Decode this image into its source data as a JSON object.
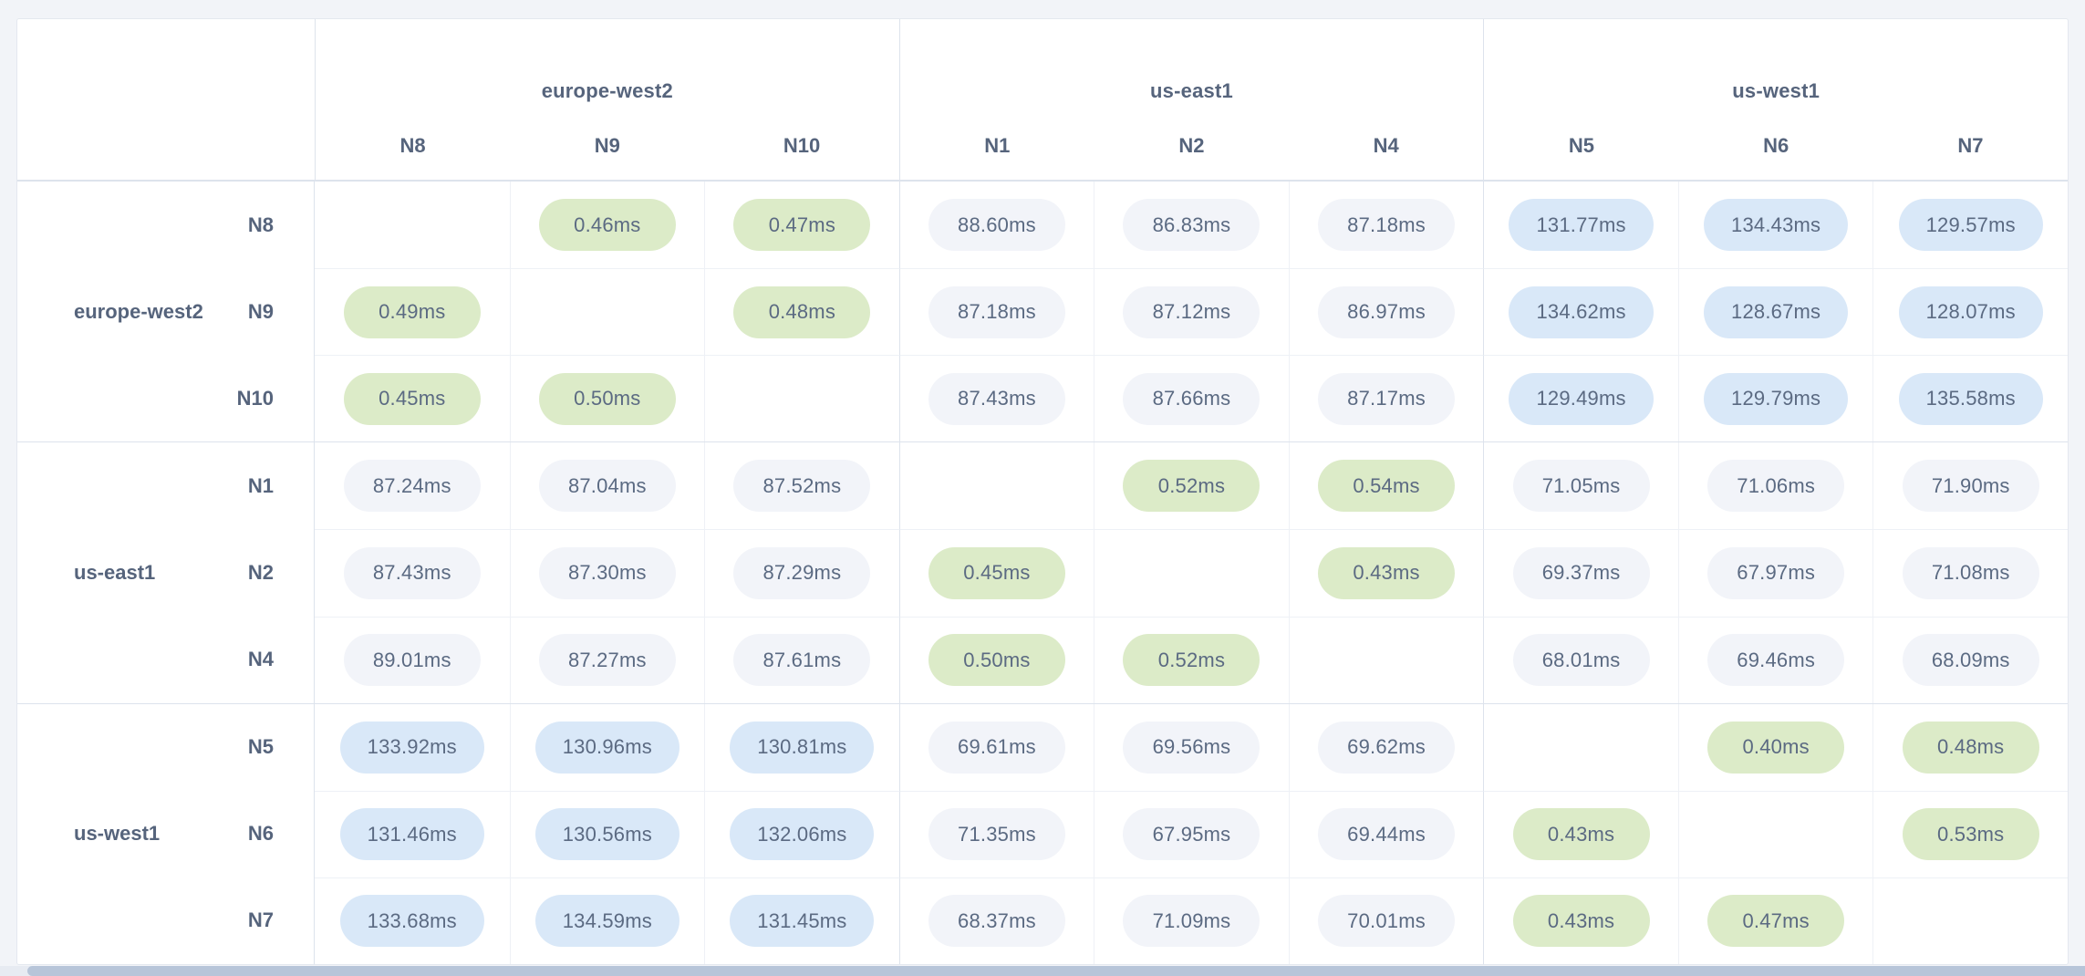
{
  "accent_colors": {
    "intra_region_green": "#dcebc8",
    "mid_latency_gray": "#f2f4f9",
    "high_latency_blue": "#d9e8f8",
    "text_slate": "#56647c"
  },
  "table": {
    "unit": "ms",
    "column_groups": [
      {
        "region": "europe-west2",
        "nodes": [
          "N8",
          "N9",
          "N10"
        ]
      },
      {
        "region": "us-east1",
        "nodes": [
          "N1",
          "N2",
          "N4"
        ]
      },
      {
        "region": "us-west1",
        "nodes": [
          "N5",
          "N6",
          "N7"
        ]
      }
    ],
    "row_groups": [
      {
        "region": "europe-west2",
        "rows": [
          {
            "node": "N8",
            "values": [
              null,
              "0.46ms",
              "0.47ms",
              "88.60ms",
              "86.83ms",
              "87.18ms",
              "131.77ms",
              "134.43ms",
              "129.57ms"
            ]
          },
          {
            "node": "N9",
            "values": [
              "0.49ms",
              null,
              "0.48ms",
              "87.18ms",
              "87.12ms",
              "86.97ms",
              "134.62ms",
              "128.67ms",
              "128.07ms"
            ]
          },
          {
            "node": "N10",
            "values": [
              "0.45ms",
              "0.50ms",
              null,
              "87.43ms",
              "87.66ms",
              "87.17ms",
              "129.49ms",
              "129.79ms",
              "135.58ms"
            ]
          }
        ]
      },
      {
        "region": "us-east1",
        "rows": [
          {
            "node": "N1",
            "values": [
              "87.24ms",
              "87.04ms",
              "87.52ms",
              null,
              "0.52ms",
              "0.54ms",
              "71.05ms",
              "71.06ms",
              "71.90ms"
            ]
          },
          {
            "node": "N2",
            "values": [
              "87.43ms",
              "87.30ms",
              "87.29ms",
              "0.45ms",
              null,
              "0.43ms",
              "69.37ms",
              "67.97ms",
              "71.08ms"
            ]
          },
          {
            "node": "N4",
            "values": [
              "89.01ms",
              "87.27ms",
              "87.61ms",
              "0.50ms",
              "0.52ms",
              null,
              "68.01ms",
              "69.46ms",
              "68.09ms"
            ]
          }
        ]
      },
      {
        "region": "us-west1",
        "rows": [
          {
            "node": "N5",
            "values": [
              "133.92ms",
              "130.96ms",
              "130.81ms",
              "69.61ms",
              "69.56ms",
              "69.62ms",
              null,
              "0.40ms",
              "0.48ms"
            ]
          },
          {
            "node": "N6",
            "values": [
              "131.46ms",
              "130.56ms",
              "132.06ms",
              "71.35ms",
              "67.95ms",
              "69.44ms",
              "0.43ms",
              null,
              "0.53ms"
            ]
          },
          {
            "node": "N7",
            "values": [
              "133.68ms",
              "134.59ms",
              "131.45ms",
              "68.37ms",
              "71.09ms",
              "70.01ms",
              "0.43ms",
              "0.47ms",
              null
            ]
          }
        ]
      }
    ]
  },
  "chart_data": {
    "type": "heatmap",
    "unit": "ms",
    "x": [
      "N8",
      "N9",
      "N10",
      "N1",
      "N2",
      "N4",
      "N5",
      "N6",
      "N7"
    ],
    "y": [
      "N8",
      "N9",
      "N10",
      "N1",
      "N2",
      "N4",
      "N5",
      "N6",
      "N7"
    ],
    "x_region_groups": [
      "europe-west2",
      "europe-west2",
      "europe-west2",
      "us-east1",
      "us-east1",
      "us-east1",
      "us-west1",
      "us-west1",
      "us-west1"
    ],
    "matrix": [
      [
        null,
        0.46,
        0.47,
        88.6,
        86.83,
        87.18,
        131.77,
        134.43,
        129.57
      ],
      [
        0.49,
        null,
        0.48,
        87.18,
        87.12,
        86.97,
        134.62,
        128.67,
        128.07
      ],
      [
        0.45,
        0.5,
        null,
        87.43,
        87.66,
        87.17,
        129.49,
        129.79,
        135.58
      ],
      [
        87.24,
        87.04,
        87.52,
        null,
        0.52,
        0.54,
        71.05,
        71.06,
        71.9
      ],
      [
        87.43,
        87.3,
        87.29,
        0.45,
        null,
        0.43,
        69.37,
        67.97,
        71.08
      ],
      [
        89.01,
        87.27,
        87.61,
        0.5,
        0.52,
        null,
        68.01,
        69.46,
        68.09
      ],
      [
        133.92,
        130.96,
        130.81,
        69.61,
        69.56,
        69.62,
        null,
        0.4,
        0.48
      ],
      [
        131.46,
        130.56,
        132.06,
        71.35,
        67.95,
        69.44,
        0.43,
        null,
        0.53
      ],
      [
        133.68,
        134.59,
        131.45,
        68.37,
        71.09,
        70.01,
        0.43,
        0.47,
        null
      ]
    ],
    "color_bands": [
      {
        "range": "< 1ms",
        "color": "#dcebc8"
      },
      {
        "range": "1ms - 100ms",
        "color": "#f2f4f9"
      },
      {
        "range": "> 100ms",
        "color": "#d9e8f8"
      }
    ],
    "legend_position": "none",
    "grid": true
  }
}
